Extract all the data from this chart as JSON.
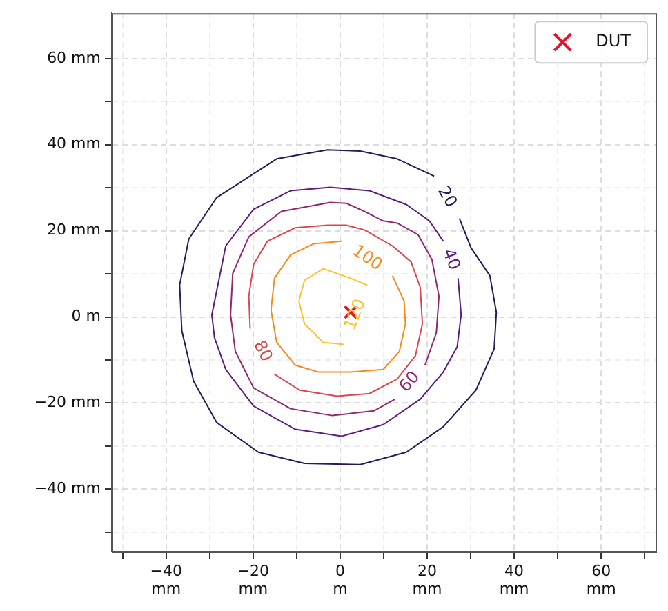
{
  "chart_data": {
    "type": "line",
    "xlim": [
      -52.5,
      72.5
    ],
    "ylim": [
      -54.5,
      70.5
    ],
    "xticks": [
      {
        "value": -50,
        "label": null
      },
      {
        "value": -40,
        "label": "−40\nmm"
      },
      {
        "value": -30,
        "label": null
      },
      {
        "value": -20,
        "label": "−20\nmm"
      },
      {
        "value": -10,
        "label": null
      },
      {
        "value": 0,
        "label": "0\nm"
      },
      {
        "value": 10,
        "label": null
      },
      {
        "value": 20,
        "label": "20\nmm"
      },
      {
        "value": 30,
        "label": null
      },
      {
        "value": 40,
        "label": "40\nmm"
      },
      {
        "value": 50,
        "label": null
      },
      {
        "value": 60,
        "label": "60\nmm"
      },
      {
        "value": 70,
        "label": null
      }
    ],
    "yticks": [
      {
        "value": -50,
        "label": null
      },
      {
        "value": -40,
        "label": "−40 mm"
      },
      {
        "value": -30,
        "label": null
      },
      {
        "value": -20,
        "label": "−20 mm"
      },
      {
        "value": -10,
        "label": null
      },
      {
        "value": 0,
        "label": "0 m"
      },
      {
        "value": 10,
        "label": null
      },
      {
        "value": 20,
        "label": "20 mm"
      },
      {
        "value": 30,
        "label": null
      },
      {
        "value": 40,
        "label": "40 mm"
      },
      {
        "value": 50,
        "label": null
      },
      {
        "value": 60,
        "label": "60 mm"
      }
    ],
    "grid": true,
    "legend": "top right",
    "series": [
      {
        "name": "20",
        "color": "#2a1858",
        "x": [
          27.4,
          30.1,
          34.4,
          35.9,
          35.4,
          31.2,
          23.7,
          15.2,
          4.6,
          -8.2,
          -18.8,
          -28.4,
          -33.7,
          -36.4,
          -36.9,
          -34.8,
          -28.4,
          -14.6,
          -2.9,
          4.6,
          13.1,
          21.6
        ],
        "values": [
          22.9,
          16.0,
          9.6,
          1.1,
          -7.4,
          -17.0,
          -25.5,
          -31.4,
          -34.3,
          -34.0,
          -31.4,
          -24.5,
          -14.9,
          -3.2,
          7.4,
          18.1,
          27.7,
          36.7,
          38.8,
          38.5,
          36.7,
          32.7
        ]
      },
      {
        "name": "40",
        "color": "#5b1c80",
        "x": [
          27.1,
          27.8,
          26.9,
          23.7,
          18.4,
          9.9,
          0.3,
          -10.3,
          -19.9,
          -26.3,
          -28.9,
          -29.5,
          -26.3,
          -19.9,
          -11.4,
          -2.3,
          6.7,
          15.2,
          20.5,
          23.7
        ],
        "values": [
          9.0,
          0.5,
          -6.9,
          -12.8,
          -19.1,
          -25.0,
          -27.7,
          -26.1,
          -20.7,
          -12.2,
          -4.8,
          0.5,
          16.5,
          25.0,
          29.3,
          30.1,
          29.3,
          26.1,
          22.3,
          17.6
        ]
      },
      {
        "name": "60",
        "color": "#94266f",
        "x": [
          19.5,
          22.1,
          22.7,
          21.1,
          17.9,
          13.1,
          9.9,
          5.6,
          1.4,
          -2.3,
          -13.5,
          -21.0,
          -24.7,
          -25.2,
          -24.1,
          -19.9,
          -11.4,
          -1.8,
          7.8,
          12.6
        ],
        "values": [
          -11.2,
          -3.7,
          4.8,
          13.3,
          19.1,
          21.8,
          22.3,
          24.5,
          26.4,
          26.6,
          24.5,
          18.6,
          10.1,
          0.5,
          -8.0,
          -16.5,
          -21.3,
          -22.9,
          -21.8,
          -19.1
        ]
      },
      {
        "name": "80",
        "color": "#d9484f",
        "x": [
          -15.1,
          -9.3,
          -0.7,
          6.7,
          13.1,
          17.3,
          18.9,
          18.4,
          16.3,
          12.0,
          5.6,
          1.4,
          -2.9,
          -10.3,
          -16.7,
          -19.9,
          -21.0,
          -20.7
        ],
        "values": [
          -13.3,
          -17.0,
          -18.4,
          -17.8,
          -14.4,
          -9.0,
          -1.6,
          6.9,
          12.8,
          16.5,
          20.2,
          21.3,
          21.3,
          20.7,
          17.6,
          12.2,
          4.8,
          -2.7
        ]
      },
      {
        "name": "100",
        "color": "#f68a1c",
        "x": [
          12.0,
          14.7,
          15.0,
          13.6,
          9.9,
          2.4,
          -5.0,
          -10.3,
          -14.6,
          -15.9,
          -15.1,
          -11.4,
          -6.1,
          0.3
        ],
        "values": [
          9.6,
          3.7,
          -1.6,
          -8.0,
          -12.2,
          -12.8,
          -12.8,
          -11.2,
          -5.9,
          1.6,
          9.0,
          14.4,
          17.0,
          17.6
        ]
      },
      {
        "name": "120",
        "color": "#fbc231",
        "x": [
          0.9,
          -3.9,
          -8.2,
          -9.5,
          -8.2,
          -3.9,
          2.4,
          6.2
        ],
        "values": [
          -6.4,
          -5.9,
          -1.6,
          3.7,
          8.5,
          11.2,
          9.0,
          7.4
        ]
      },
      {
        "name": "DUT",
        "type": "scatter",
        "marker": "cross",
        "color": "#e8112d",
        "x": [
          2.4
        ],
        "values": [
          1.1
        ]
      }
    ]
  }
}
